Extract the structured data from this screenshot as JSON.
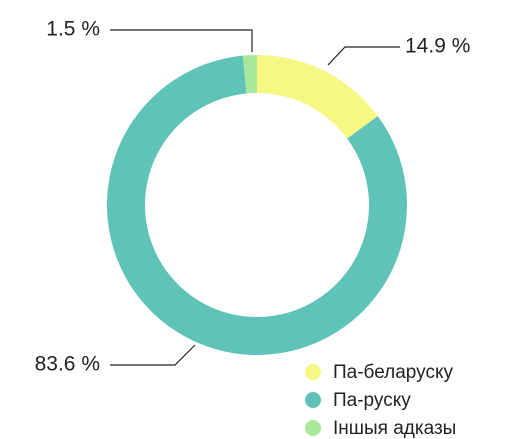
{
  "chart_data": {
    "type": "donut",
    "categories": [
      "Па-беларуску",
      "Па-руску",
      "Іншыя адказы"
    ],
    "values": [
      14.9,
      83.6,
      1.5
    ],
    "value_labels": [
      "14.9 %",
      "83.6 %",
      "1.5 %"
    ],
    "colors": [
      "#f7f783",
      "#5fc3b8",
      "#a8e89a"
    ],
    "legend": "bottom-right"
  }
}
